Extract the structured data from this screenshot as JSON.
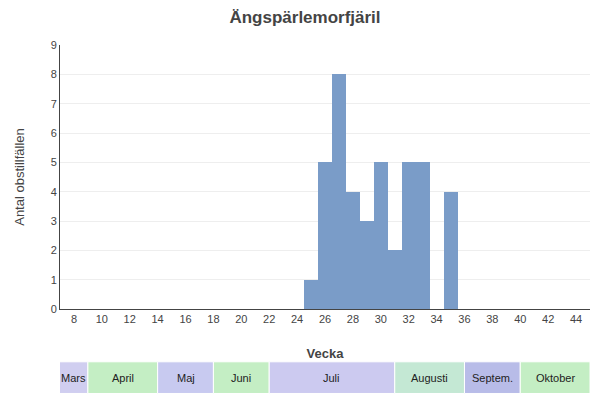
{
  "chart_data": {
    "type": "bar",
    "title": "Ängspärlemorfjäril",
    "x_label": "Vecka",
    "y_label": "Antal obstillfällen",
    "x": [
      25,
      26,
      27,
      28,
      29,
      30,
      31,
      32,
      33,
      35
    ],
    "values": [
      1,
      5,
      8,
      4,
      3,
      5,
      2,
      5,
      5,
      4
    ],
    "color": "#7a9cc8",
    "xlim": [
      7,
      45
    ],
    "xticks": [
      8,
      10,
      12,
      14,
      16,
      18,
      20,
      22,
      24,
      26,
      28,
      30,
      32,
      34,
      36,
      38,
      40,
      42,
      44
    ],
    "ylim": [
      0,
      9
    ],
    "yticks": [
      0,
      1,
      2,
      3,
      4,
      5,
      6,
      7,
      8,
      9
    ],
    "grid": "y",
    "annotations": [
      {
        "text": "Mars",
        "x0": 1,
        "x1": 9,
        "color": "#d0cef0"
      },
      {
        "text": "April",
        "x0": 9,
        "x1": 14,
        "color": "#c4eec4"
      },
      {
        "text": "Maj",
        "x0": 14,
        "x1": 18,
        "color": "#c8caf0"
      },
      {
        "text": "Juni",
        "x0": 18,
        "x1": 22,
        "color": "#c4eec4"
      },
      {
        "text": "Juli",
        "x0": 22,
        "x1": 31,
        "color": "#cccaf0"
      },
      {
        "text": "Augusti",
        "x0": 31,
        "x1": 36,
        "color": "#c4e8d4"
      },
      {
        "text": "Septem.",
        "x0": 36,
        "x1": 40,
        "color": "#b8bce8"
      },
      {
        "text": "Oktober",
        "x0": 40,
        "x1": 45,
        "color": "#c4eec4"
      }
    ]
  }
}
